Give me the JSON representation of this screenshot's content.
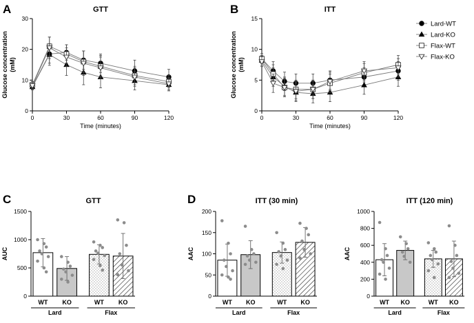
{
  "panels": {
    "a": "A",
    "b": "B",
    "c": "C",
    "d": "D"
  },
  "legend": [
    "Lard-WT",
    "Lard-KO",
    "Flax-WT",
    "Flax-KO"
  ],
  "chart_data": [
    {
      "id": "gtt",
      "type": "line",
      "title": "GTT",
      "xlabel": "Time (minutes)",
      "ylabel": "Glucose concentration (mM)",
      "ylabel_lines": [
        "Glucose concentration",
        "(mM)"
      ],
      "xlim": [
        0,
        120
      ],
      "ylim": [
        0,
        30
      ],
      "xticks": [
        0,
        30,
        60,
        90,
        120
      ],
      "yticks": [
        0,
        10,
        20,
        30
      ],
      "x": [
        0,
        15,
        30,
        45,
        60,
        90,
        120
      ],
      "series": [
        {
          "name": "Lard-WT",
          "marker": "circle",
          "values": [
            8.0,
            18.5,
            19.0,
            16.5,
            15.5,
            13.0,
            11.0
          ],
          "err": [
            1.0,
            3.0,
            2.5,
            3.0,
            3.0,
            3.5,
            2.5
          ]
        },
        {
          "name": "Lard-KO",
          "marker": "triangle-up",
          "values": [
            7.8,
            18.3,
            15.0,
            12.5,
            11.0,
            9.8,
            8.5
          ],
          "err": [
            1.0,
            3.5,
            3.5,
            4.0,
            3.5,
            3.0,
            2.0
          ]
        },
        {
          "name": "Flax-WT",
          "marker": "square",
          "values": [
            8.5,
            21.0,
            18.5,
            16.0,
            14.5,
            11.5,
            9.5
          ],
          "err": [
            1.0,
            3.0,
            3.0,
            3.5,
            3.5,
            3.0,
            2.0
          ]
        },
        {
          "name": "Flax-KO",
          "marker": "triangle-down",
          "values": [
            8.2,
            20.5,
            17.5,
            15.5,
            14.0,
            11.0,
            8.8
          ],
          "err": [
            1.0,
            3.5,
            3.0,
            4.0,
            3.5,
            3.0,
            2.0
          ]
        }
      ]
    },
    {
      "id": "itt",
      "type": "line",
      "title": "ITT",
      "xlabel": "Time (minutes)",
      "ylabel": "Glucose concentration (mM)",
      "ylabel_lines": [
        "Glucose concentration",
        "(mM)"
      ],
      "xlim": [
        0,
        120
      ],
      "ylim": [
        0,
        15
      ],
      "xticks": [
        0,
        30,
        60,
        90,
        120
      ],
      "yticks": [
        0,
        5,
        10,
        15
      ],
      "x": [
        0,
        10,
        20,
        30,
        45,
        60,
        90,
        120
      ],
      "series": [
        {
          "name": "Lard-WT",
          "marker": "circle",
          "values": [
            8.5,
            6.5,
            4.8,
            4.5,
            4.5,
            5.0,
            5.5,
            6.5
          ],
          "err": [
            0.8,
            1.5,
            1.5,
            1.5,
            1.5,
            1.5,
            1.5,
            1.5
          ]
        },
        {
          "name": "Lard-KO",
          "marker": "triangle-up",
          "values": [
            8.2,
            5.5,
            4.0,
            3.0,
            2.8,
            3.0,
            4.2,
            5.5
          ],
          "err": [
            0.8,
            1.5,
            1.5,
            1.5,
            1.5,
            1.5,
            1.5,
            1.5
          ]
        },
        {
          "name": "Flax-WT",
          "marker": "square",
          "values": [
            8.5,
            6.0,
            3.8,
            3.5,
            3.5,
            4.5,
            6.2,
            7.5
          ],
          "err": [
            0.8,
            1.5,
            1.5,
            1.5,
            1.5,
            1.5,
            1.5,
            1.5
          ]
        },
        {
          "name": "Flax-KO",
          "marker": "triangle-down",
          "values": [
            8.0,
            4.5,
            3.8,
            3.2,
            3.5,
            4.8,
            6.5,
            7.0
          ],
          "err": [
            0.8,
            1.5,
            1.5,
            1.5,
            1.5,
            1.5,
            1.5,
            1.5
          ]
        }
      ]
    },
    {
      "id": "auc",
      "type": "bar",
      "title": "GTT",
      "ylabel": "AUC",
      "ylim": [
        0,
        1500
      ],
      "yticks": [
        0,
        500,
        1000,
        1500
      ],
      "categories": [
        "WT",
        "KO",
        "WT",
        "KO"
      ],
      "groups": [
        "Lard",
        "Flax"
      ],
      "values": [
        770,
        490,
        740,
        710
      ],
      "err": [
        250,
        210,
        170,
        400
      ],
      "points": [
        [
          1000,
          930,
          870,
          800,
          750,
          700,
          620,
          500,
          430
        ],
        [
          700,
          600,
          530,
          480,
          430,
          370,
          300,
          250
        ],
        [
          960,
          900,
          860,
          800,
          760,
          720,
          650,
          540,
          460
        ],
        [
          1350,
          1300,
          900,
          750,
          550,
          450,
          380
        ]
      ]
    },
    {
      "id": "itt30",
      "type": "bar",
      "title": "ITT (30 min)",
      "ylabel": "AAC",
      "ylim": [
        0,
        200
      ],
      "yticks": [
        0,
        50,
        100,
        150,
        200
      ],
      "categories": [
        "WT",
        "KO",
        "WT",
        "KO"
      ],
      "groups": [
        "Lard",
        "Flax"
      ],
      "values": [
        85,
        98,
        103,
        127
      ],
      "err": [
        38,
        33,
        25,
        35
      ],
      "points": [
        [
          178,
          125,
          100,
          85,
          70,
          60,
          50,
          45,
          40
        ],
        [
          165,
          110,
          100,
          95,
          85,
          80,
          75
        ],
        [
          150,
          125,
          110,
          105,
          95,
          85,
          75,
          65
        ],
        [
          172,
          160,
          145,
          130,
          110,
          100,
          90
        ]
      ]
    },
    {
      "id": "itt120",
      "type": "bar",
      "title": "ITT (120 min)",
      "ylabel": "AAC",
      "ylim": [
        0,
        1000
      ],
      "yticks": [
        0,
        200,
        400,
        600,
        800,
        1000
      ],
      "categories": [
        "WT",
        "KO",
        "WT",
        "KO"
      ],
      "groups": [
        "Lard",
        "Flax"
      ],
      "values": [
        430,
        540,
        440,
        440
      ],
      "err": [
        190,
        110,
        100,
        210
      ],
      "points": [
        [
          870,
          560,
          480,
          430,
          400,
          330,
          260,
          200
        ],
        [
          700,
          620,
          560,
          520,
          470,
          400
        ],
        [
          630,
          560,
          520,
          480,
          430,
          380,
          300,
          220
        ],
        [
          830,
          600,
          480,
          410,
          330,
          270,
          220
        ]
      ]
    }
  ]
}
